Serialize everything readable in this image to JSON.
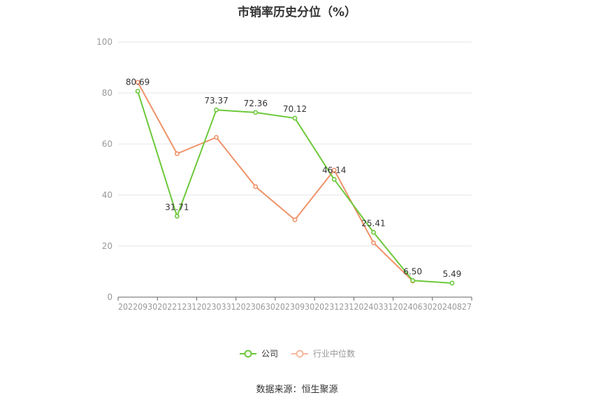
{
  "title": "市销率历史分位（%）",
  "source": "数据来源：恒生聚源",
  "colors": {
    "company": "#6cc83a",
    "industry": "#f09268",
    "grid": "#e6e6ee",
    "axis": "#666666",
    "tick": "#999999"
  },
  "chart_data": {
    "type": "line",
    "categories": [
      "20220930",
      "20221231",
      "20230331",
      "20230630",
      "20230930",
      "20231231",
      "20240331",
      "20240630",
      "20240827"
    ],
    "ylim": [
      0,
      100
    ],
    "yticks": [
      0,
      20,
      40,
      60,
      80,
      100
    ],
    "grid": true,
    "legend_position": "bottom",
    "series": [
      {
        "name": "公司",
        "values": [
          80.69,
          31.71,
          73.37,
          72.36,
          70.12,
          46.14,
          25.41,
          6.5,
          5.49
        ],
        "labels": [
          "80.69",
          "31.71",
          "73.37",
          "72.36",
          "70.12",
          "46.14",
          "25.41",
          "6.50",
          "5.49"
        ]
      },
      {
        "name": "行业中位数",
        "values": [
          84.2,
          56.2,
          62.6,
          43.3,
          30.3,
          49.8,
          21.3,
          6.3,
          null
        ]
      }
    ]
  }
}
